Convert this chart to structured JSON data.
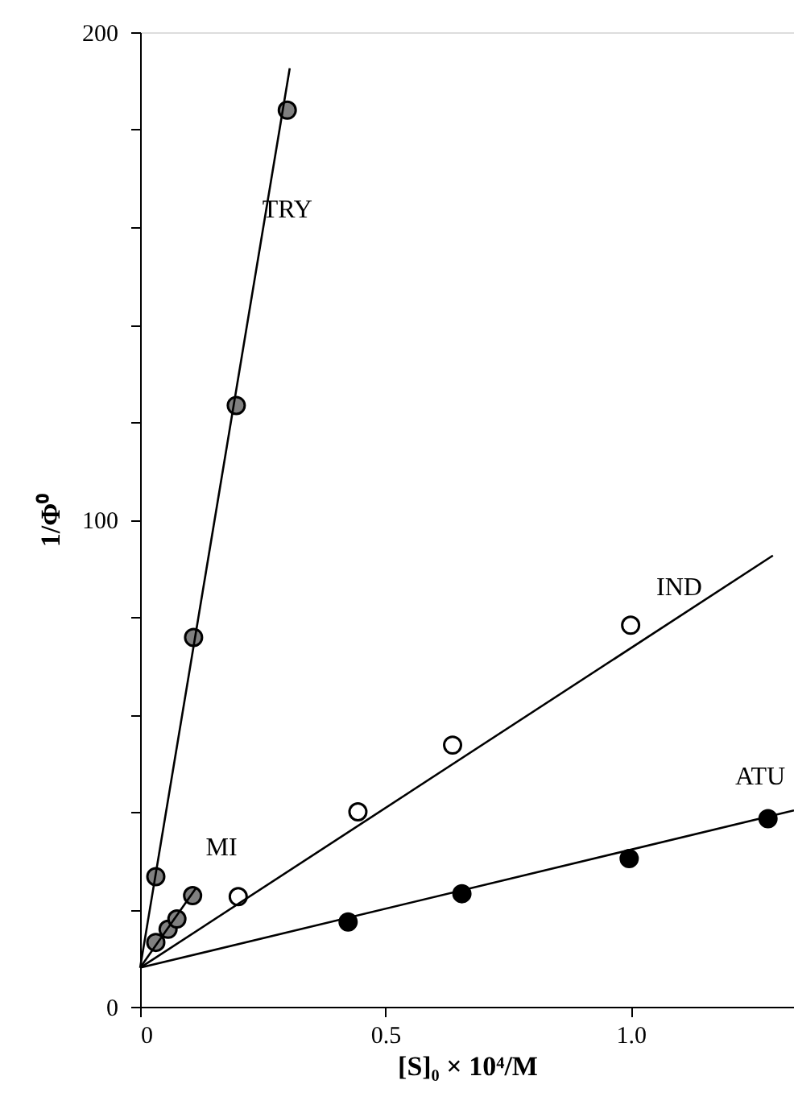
{
  "chart_data": {
    "type": "scatter",
    "xlabel": "[S]₀ × 10⁴/M",
    "ylabel": "1/Φ⁰",
    "xlim": [
      0,
      1.333
    ],
    "ylim": [
      0,
      200
    ],
    "xticks": [
      0,
      0.5,
      {
        "value": 1.0,
        "label": "1.0"
      }
    ],
    "yticks": [
      0,
      {
        "value": 20,
        "label": null
      },
      {
        "value": 40,
        "label": null
      },
      {
        "value": 60,
        "label": null
      },
      {
        "value": 80,
        "label": null
      },
      100,
      {
        "value": 120,
        "label": null
      },
      {
        "value": 140,
        "label": null
      },
      {
        "value": 160,
        "label": null
      },
      {
        "value": 180,
        "label": null
      },
      200
    ],
    "marker": "circle",
    "grid": false,
    "series": [
      {
        "color": "#808080",
        "x": [
          0.032,
          0.109,
          0.196,
          0.3
        ],
        "values": [
          26.7,
          75.8,
          123.4,
          184
        ]
      },
      {
        "color": "#808080",
        "x": [
          0.032,
          0.057,
          0.075,
          0.107
        ],
        "values": [
          13.2,
          15.9,
          18,
          22.8
        ]
      },
      {
        "color": "#ffffff",
        "x": [
          0.2,
          0.444,
          0.637,
          1.0
        ],
        "values": [
          22.6,
          40,
          53.7,
          78.3
        ]
      },
      {
        "color": "#000000",
        "x": [
          0.424,
          0.656,
          0.997,
          1.28
        ],
        "values": [
          17.4,
          23.2,
          30.4,
          38.6
        ]
      },
      {
        "type": "line",
        "marker": "none",
        "color": "#000000",
        "x": [
          0,
          0.305
        ],
        "values": [
          8,
          192.6
        ]
      },
      {
        "type": "line",
        "marker": "none",
        "color": "#000000",
        "x": [
          0,
          0.115
        ],
        "values": [
          8,
          24.5
        ]
      },
      {
        "type": "line",
        "marker": "none",
        "color": "#000000",
        "x": [
          0,
          1.29
        ],
        "values": [
          8,
          92.6
        ]
      },
      {
        "type": "line",
        "marker": "none",
        "color": "#000000",
        "x": [
          0,
          1.333
        ],
        "values": [
          8,
          40.3
        ]
      }
    ],
    "annotations": [
      {
        "text": "TRY",
        "x": 0.241,
        "y": 153.8
      },
      {
        "text": "MI",
        "x": 0.107,
        "y": 22.8
      },
      {
        "text": "IND",
        "x": 1.04,
        "y": 76.2
      },
      {
        "text": "ATU",
        "x": 1.205,
        "y": 37.3
      }
    ]
  }
}
